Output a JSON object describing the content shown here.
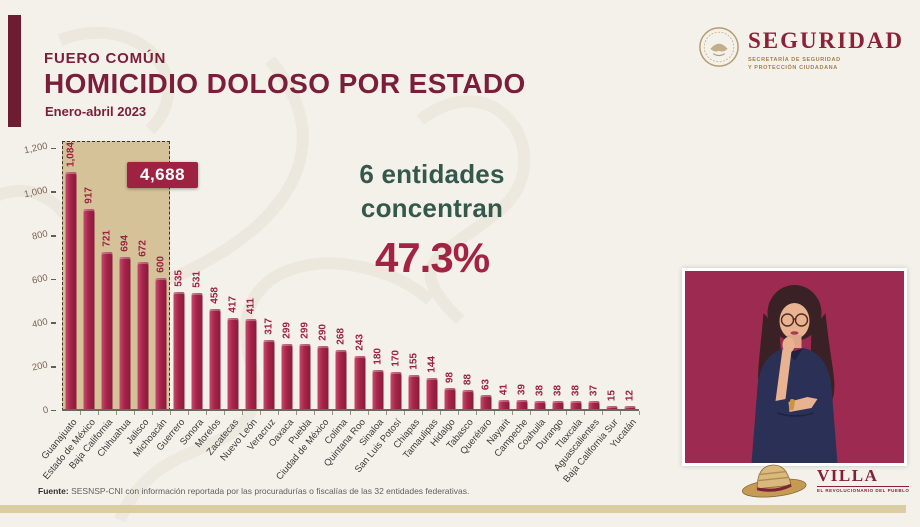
{
  "colors": {
    "maroon": "#7b1e3c",
    "bar": "#a8244a",
    "callout_green": "#34584c",
    "percent_red": "#a32342",
    "highlight_tan": "#d6c299",
    "bottom_bar_tan": "#dbcda1",
    "video_background": "#9d2b51"
  },
  "header": {
    "kicker": "FUERO COMÚN",
    "title": "HOMICIDIO DOLOSO POR ESTADO",
    "subtitle": "Enero-abril 2023"
  },
  "logo": {
    "wordmark": "SEGURIDAD",
    "subline1": "SECRETARÍA DE SEGURIDAD",
    "subline2": "Y PROTECCIÓN CIUDADANA"
  },
  "callout": {
    "line1": "6 entidades",
    "line2": "concentran",
    "percent": "47.3%"
  },
  "chart_data": {
    "type": "bar",
    "title": "HOMICIDIO DOLOSO POR ESTADO",
    "subtitle": "Enero-abril 2023",
    "categories": [
      "Guanajuato",
      "Estado de México",
      "Baja California",
      "Chihuahua",
      "Jalisco",
      "Michoacán",
      "Guerrero",
      "Sonora",
      "Morelos",
      "Zacatecas",
      "Nuevo León",
      "Veracruz",
      "Oaxaca",
      "Puebla",
      "Ciudad de México",
      "Colima",
      "Quintana Roo",
      "Sinaloa",
      "San Luis Potosí",
      "Chiapas",
      "Tamaulipas",
      "Hidalgo",
      "Tabasco",
      "Querétaro",
      "Nayarit",
      "Campeche",
      "Coahuila",
      "Durango",
      "Tlaxcala",
      "Aguascalientes",
      "Baja California Sur",
      "Yucatán"
    ],
    "values": [
      1084,
      917,
      721,
      694,
      672,
      600,
      535,
      531,
      458,
      417,
      411,
      317,
      299,
      299,
      290,
      268,
      243,
      180,
      170,
      155,
      144,
      98,
      88,
      63,
      41,
      39,
      38,
      38,
      38,
      37,
      15,
      12
    ],
    "value_labels": [
      "1,084",
      "917",
      "721",
      "694",
      "672",
      "600",
      "535",
      "531",
      "458",
      "417",
      "411",
      "317",
      "299",
      "299",
      "290",
      "268",
      "243",
      "180",
      "170",
      "155",
      "144",
      "98",
      "88",
      "63",
      "41",
      "39",
      "38",
      "38",
      "38",
      "37",
      "15",
      "12"
    ],
    "xlabel": "",
    "ylabel": "",
    "ylim": [
      0,
      1200
    ],
    "yticks": [
      "0",
      "200",
      "400",
      "600",
      "800",
      "1,000",
      "1,200"
    ],
    "grid": false,
    "legend": false,
    "highlight": {
      "first_n": 6,
      "sum_label": "4,688"
    }
  },
  "footer": {
    "source_label": "Fuente:",
    "source_text": " SESNSP-CNI con información reportada por las procuradurías o fiscalías de las 32 entidades federativas."
  },
  "villa": {
    "wordmark": "VILLA",
    "tagline": "EL REVOLUCIONARIO DEL PUEBLO"
  }
}
